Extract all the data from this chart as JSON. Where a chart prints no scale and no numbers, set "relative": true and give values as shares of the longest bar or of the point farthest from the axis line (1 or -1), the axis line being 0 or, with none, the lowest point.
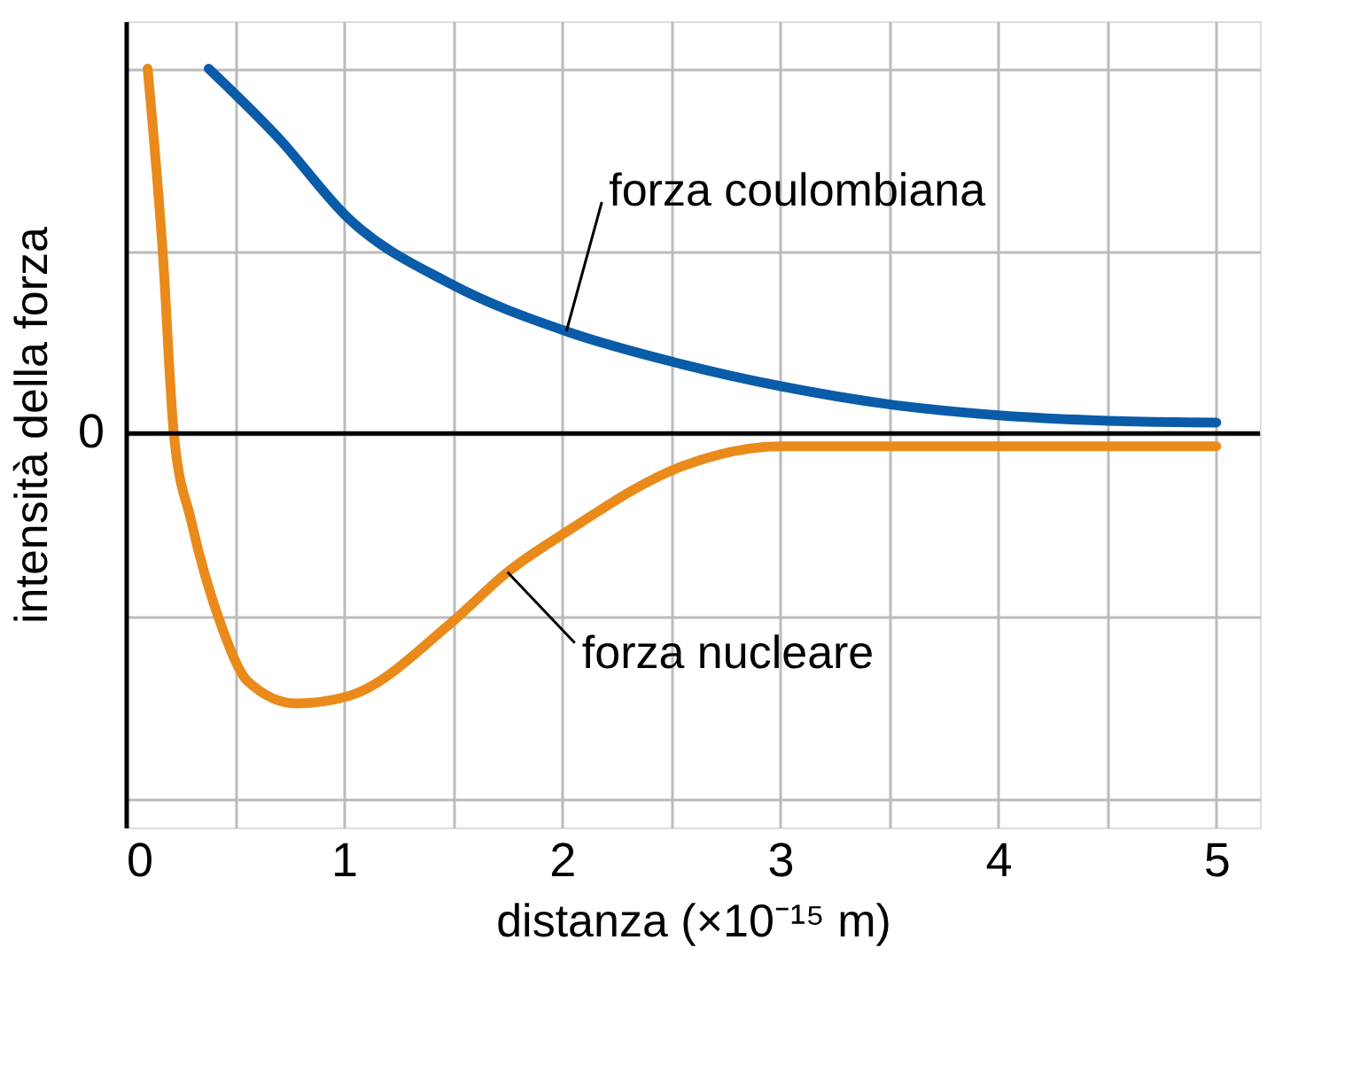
{
  "chart_data": {
    "type": "line",
    "relative": true,
    "xlabel": "distanza (×10⁻¹⁵ m)",
    "ylabel": "intensità della forza",
    "xlim": [
      0,
      5.2
    ],
    "xticks": [
      0,
      {
        "value": 0.5,
        "label": null
      },
      1,
      {
        "value": 1.5,
        "label": null
      },
      2,
      {
        "value": 2.5,
        "label": null
      },
      3,
      {
        "value": 3.5,
        "label": null
      },
      4,
      {
        "value": 4.5,
        "label": null
      },
      5
    ],
    "grid": true,
    "marker": "none",
    "line_style": "solid",
    "annotations": [
      "0"
    ],
    "series": [
      {
        "name": "forza coulombiana",
        "color": "#0a5ca8",
        "x": [
          0.38,
          0.7,
          1.02,
          1.49,
          2.02,
          2.55,
          3.0,
          3.5,
          4.0,
          4.5,
          5.0
        ],
        "values": [
          1.0,
          0.81,
          0.59,
          0.41,
          0.28,
          0.19,
          0.13,
          0.08,
          0.05,
          0.035,
          0.03
        ]
      },
      {
        "name": "forza nucleare",
        "color": "#ea8a1a",
        "x": [
          0.1,
          0.17,
          0.22,
          0.3,
          0.44,
          0.56,
          0.78,
          1.02,
          1.49,
          1.75,
          2.02,
          2.55,
          3.0,
          5.0
        ],
        "values": [
          1.0,
          0.49,
          0.0,
          -0.24,
          -0.53,
          -0.68,
          -0.74,
          -0.72,
          -0.52,
          -0.38,
          -0.27,
          -0.09,
          -0.035,
          -0.035
        ]
      }
    ]
  }
}
